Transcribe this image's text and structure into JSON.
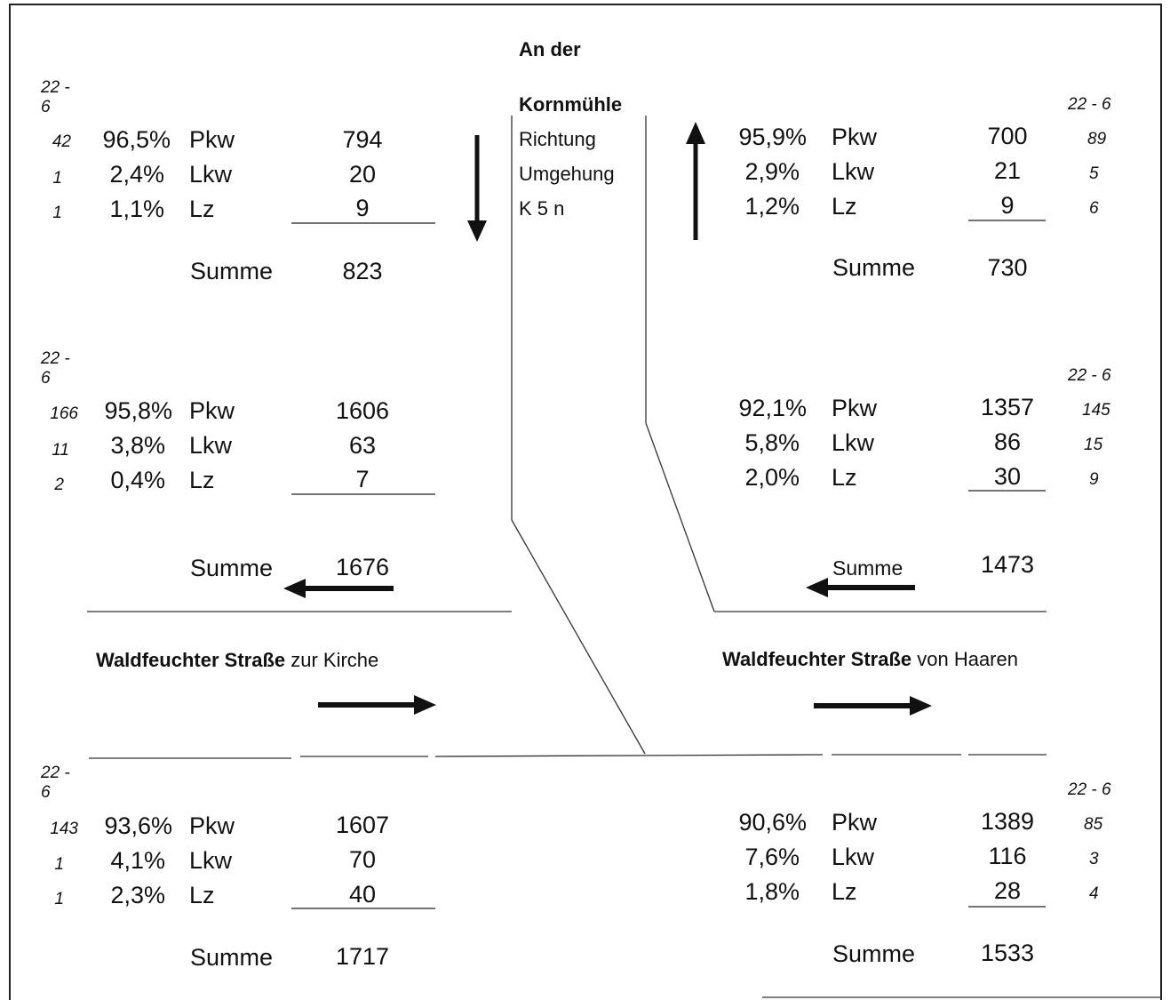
{
  "road_north": {
    "name_line1": "An der",
    "name_line2": "Kornmühle",
    "dir_line1": "Richtung",
    "dir_line2": "Umgehung",
    "dir_line3": "K 5 n"
  },
  "street_left": {
    "bold": "Waldfeuchter Straße",
    "rest": " zur Kirche"
  },
  "street_right": {
    "bold": "Waldfeuchter Straße",
    "rest": " von Haaren"
  },
  "sum_label": "Summe",
  "blocks": [
    {
      "id": "top_left",
      "night_label": "22 -\n6",
      "rows": [
        {
          "night": "42",
          "pct": "96,5%",
          "type": "Pkw",
          "count": "794"
        },
        {
          "night": "1",
          "pct": "2,4%",
          "type": "Lkw",
          "count": "20"
        },
        {
          "night": "1",
          "pct": "1,1%",
          "type": "Lz",
          "count": "9"
        }
      ],
      "sum": "823"
    },
    {
      "id": "mid_left",
      "night_label": "22 -\n6",
      "rows": [
        {
          "night": "166",
          "pct": "95,8%",
          "type": "Pkw",
          "count": "1606"
        },
        {
          "night": "11",
          "pct": "3,8%",
          "type": "Lkw",
          "count": "63"
        },
        {
          "night": "2",
          "pct": "0,4%",
          "type": "Lz",
          "count": "7"
        }
      ],
      "sum": "1676"
    },
    {
      "id": "bottom_left",
      "night_label": "22 -\n6",
      "rows": [
        {
          "night": "143",
          "pct": "93,6%",
          "type": "Pkw",
          "count": "1607"
        },
        {
          "night": "1",
          "pct": "4,1%",
          "type": "Lkw",
          "count": "70"
        },
        {
          "night": "1",
          "pct": "2,3%",
          "type": "Lz",
          "count": "40"
        }
      ],
      "sum": "1717"
    },
    {
      "id": "top_right",
      "night_label": "22 - 6",
      "rows": [
        {
          "night": "89",
          "pct": "95,9%",
          "type": "Pkw",
          "count": "700"
        },
        {
          "night": "5",
          "pct": "2,9%",
          "type": "Lkw",
          "count": "21"
        },
        {
          "night": "6",
          "pct": "1,2%",
          "type": "Lz",
          "count": "9"
        }
      ],
      "sum": "730"
    },
    {
      "id": "mid_right",
      "night_label": "22 - 6",
      "rows": [
        {
          "night": "145",
          "pct": "92,1%",
          "type": "Pkw",
          "count": "1357"
        },
        {
          "night": "15",
          "pct": "5,8%",
          "type": "Lkw",
          "count": "86"
        },
        {
          "night": "9",
          "pct": "2,0%",
          "type": "Lz",
          "count": "30"
        }
      ],
      "sum": "1473"
    },
    {
      "id": "bottom_right",
      "night_label": "22 - 6",
      "rows": [
        {
          "night": "85",
          "pct": "90,6%",
          "type": "Pkw",
          "count": "1389"
        },
        {
          "night": "3",
          "pct": "7,6%",
          "type": "Lkw",
          "count": "116"
        },
        {
          "night": "4",
          "pct": "1,8%",
          "type": "Lz",
          "count": "28"
        }
      ],
      "sum": "1533"
    }
  ]
}
